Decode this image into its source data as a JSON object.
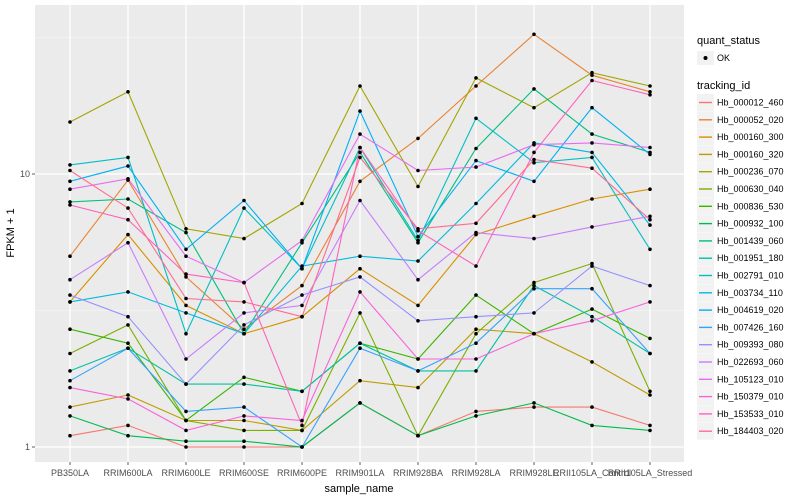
{
  "chart_data": {
    "type": "line",
    "title": "",
    "xlabel": "sample_name",
    "ylabel": "FPKM + 1",
    "y_scale": "log10",
    "ylim": [
      0.9,
      48
    ],
    "y_ticks": [
      1,
      10
    ],
    "y_tick_labels": [
      "1",
      "10"
    ],
    "grid": true,
    "legend_position": "right",
    "categories": [
      "PB350LA",
      "RRIM600LA",
      "RRIM600LE",
      "RRIM600SE",
      "RRIM600PE",
      "RRIM901LA",
      "RRIM928BA",
      "RRIM928LA",
      "RRIM928LE",
      "RRII105LA_Control",
      "RRII105LA_Stressed"
    ],
    "legends": [
      {
        "title": "quant_status",
        "entries": [
          {
            "label": "OK",
            "marker": "point"
          }
        ]
      },
      {
        "title": "tracking_id",
        "entries": []
      }
    ],
    "series": [
      {
        "name": "Hb_000012_460",
        "color": "#F8766D",
        "values": [
          1.1,
          1.2,
          1.0,
          1.0,
          1.0,
          1.45,
          1.1,
          1.35,
          1.4,
          1.4,
          1.2
        ]
      },
      {
        "name": "Hb_000052_020",
        "color": "#EA8331",
        "values": [
          5.0,
          9.5,
          4.2,
          2.7,
          3.9,
          9.4,
          13.5,
          21.0,
          32.5,
          23.0,
          20.0
        ]
      },
      {
        "name": "Hb_000160_300",
        "color": "#D89000",
        "values": [
          3.4,
          6.0,
          3.3,
          2.6,
          3.0,
          4.5,
          3.3,
          6.0,
          7.0,
          8.1,
          8.8
        ]
      },
      {
        "name": "Hb_000160_320",
        "color": "#C09B00",
        "values": [
          1.4,
          1.55,
          1.25,
          1.25,
          1.15,
          1.75,
          1.65,
          2.7,
          2.6,
          2.05,
          1.55
        ]
      },
      {
        "name": "Hb_000236_070",
        "color": "#A3A500",
        "values": [
          15.5,
          20.0,
          6.3,
          5.8,
          7.8,
          21.0,
          9.0,
          22.5,
          17.5,
          23.5,
          21.0
        ]
      },
      {
        "name": "Hb_000630_040",
        "color": "#7CAE00",
        "values": [
          2.2,
          2.8,
          1.25,
          1.15,
          1.15,
          3.1,
          1.1,
          2.6,
          4.0,
          4.7,
          1.6
        ]
      },
      {
        "name": "Hb_000836_530",
        "color": "#39B600",
        "values": [
          2.7,
          2.4,
          1.25,
          1.8,
          1.6,
          2.4,
          2.1,
          3.6,
          2.6,
          3.2,
          2.5
        ]
      },
      {
        "name": "Hb_000932_100",
        "color": "#00BB4E",
        "values": [
          1.3,
          1.1,
          1.05,
          1.05,
          1.0,
          1.45,
          1.1,
          1.3,
          1.45,
          1.2,
          1.15
        ]
      },
      {
        "name": "Hb_001439_060",
        "color": "#00BF7D",
        "values": [
          7.9,
          8.1,
          6.1,
          2.6,
          5.6,
          12.0,
          5.6,
          12.4,
          20.5,
          14.0,
          12.0
        ]
      },
      {
        "name": "Hb_001951_180",
        "color": "#00C1A3",
        "values": [
          1.9,
          2.3,
          1.7,
          1.7,
          1.6,
          2.4,
          1.9,
          1.9,
          3.9,
          3.0,
          2.2
        ]
      },
      {
        "name": "Hb_002791_010",
        "color": "#00BFC4",
        "values": [
          10.8,
          11.5,
          2.6,
          7.5,
          4.5,
          12.5,
          5.7,
          16.0,
          11.0,
          11.5,
          5.3
        ]
      },
      {
        "name": "Hb_003734_110",
        "color": "#00BAE0",
        "values": [
          3.4,
          3.7,
          3.1,
          2.6,
          4.6,
          5.0,
          4.8,
          7.8,
          13.0,
          12.0,
          6.5
        ]
      },
      {
        "name": "Hb_004619_020",
        "color": "#00B0F6",
        "values": [
          9.4,
          10.7,
          5.3,
          8.0,
          4.5,
          17.0,
          5.9,
          11.2,
          9.4,
          17.5,
          11.8
        ]
      },
      {
        "name": "Hb_007426_160",
        "color": "#35A2FF",
        "values": [
          1.75,
          2.3,
          1.35,
          1.4,
          1.0,
          2.3,
          1.9,
          2.4,
          3.8,
          3.8,
          2.2
        ]
      },
      {
        "name": "Hb_009393_080",
        "color": "#9590FF",
        "values": [
          3.6,
          3.0,
          1.7,
          2.8,
          3.6,
          4.2,
          2.9,
          3.0,
          3.1,
          4.6,
          3.9
        ]
      },
      {
        "name": "Hb_022693_060",
        "color": "#C77CFF",
        "values": [
          4.1,
          5.6,
          2.1,
          3.1,
          3.3,
          8.0,
          4.1,
          6.1,
          5.8,
          6.4,
          7.0
        ]
      },
      {
        "name": "Hb_105123_010",
        "color": "#E76BF3",
        "values": [
          8.8,
          9.6,
          5.0,
          4.0,
          5.7,
          14.0,
          10.3,
          10.6,
          12.8,
          13.0,
          12.5
        ]
      },
      {
        "name": "Hb_150379_010",
        "color": "#FA62DB",
        "values": [
          1.65,
          1.5,
          1.15,
          1.3,
          1.25,
          3.7,
          2.1,
          2.1,
          2.6,
          2.9,
          3.4
        ]
      },
      {
        "name": "Hb_153533_010",
        "color": "#FF62BC",
        "values": [
          7.7,
          6.8,
          4.3,
          4.0,
          1.2,
          12.5,
          6.2,
          4.6,
          12.0,
          22.0,
          19.5
        ]
      },
      {
        "name": "Hb_184403_020",
        "color": "#FF6C91",
        "values": [
          10.3,
          7.5,
          3.5,
          3.4,
          3.0,
          11.5,
          6.3,
          6.6,
          11.3,
          10.5,
          6.8
        ]
      }
    ]
  }
}
